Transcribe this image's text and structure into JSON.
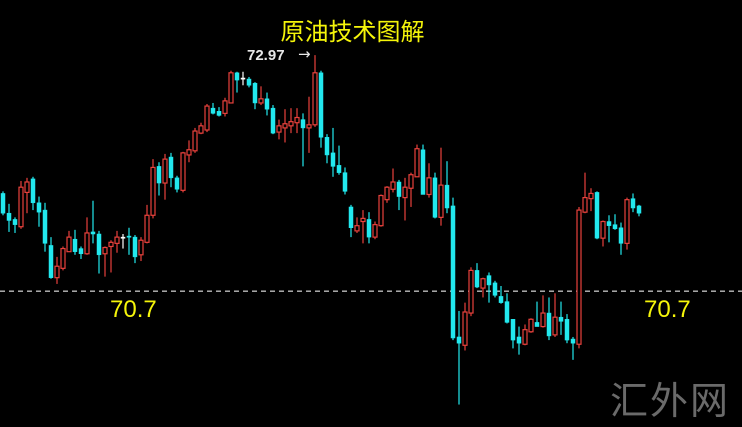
{
  "chart_data": {
    "type": "candlestick",
    "title": "原油技术图解",
    "colors": {
      "up": "#e8413c",
      "down": "#22e8ee",
      "doji": "#ffffff",
      "level_line": "#bdbdbd",
      "text": "#f5f50a",
      "background": "#000000"
    },
    "reference_level": {
      "value": 70.7,
      "label": "70.7",
      "style": "dashed"
    },
    "high_annotation": {
      "value": 72.97,
      "label": "72.97",
      "arrow": "→"
    },
    "ylim": [
      69.4,
      73.5
    ],
    "grid": false,
    "candles_ohlc": [
      [
        71.64,
        71.66,
        71.43,
        71.45
      ],
      [
        71.45,
        71.54,
        71.27,
        71.38
      ],
      [
        71.39,
        71.41,
        71.26,
        71.34
      ],
      [
        71.32,
        71.76,
        71.3,
        71.7
      ],
      [
        71.65,
        71.79,
        71.45,
        71.75
      ],
      [
        71.78,
        71.8,
        71.48,
        71.55
      ],
      [
        71.55,
        71.61,
        71.32,
        71.46
      ],
      [
        71.48,
        71.55,
        71.08,
        71.16
      ],
      [
        71.14,
        71.22,
        70.82,
        70.83
      ],
      [
        70.83,
        71.03,
        70.77,
        70.94
      ],
      [
        70.92,
        71.13,
        70.9,
        71.11
      ],
      [
        71.08,
        71.28,
        71.08,
        71.22
      ],
      [
        71.2,
        71.29,
        71.05,
        71.08
      ],
      [
        71.11,
        71.13,
        71.01,
        71.06
      ],
      [
        71.06,
        71.41,
        71.05,
        71.26
      ],
      [
        71.27,
        71.57,
        71.16,
        71.25
      ],
      [
        71.25,
        71.28,
        70.87,
        71.05
      ],
      [
        71.06,
        71.13,
        70.84,
        71.12
      ],
      [
        71.13,
        71.19,
        70.88,
        71.17
      ],
      [
        71.16,
        71.28,
        71.07,
        71.22
      ],
      [
        71.22,
        71.25,
        71.11,
        71.22
      ],
      [
        71.23,
        71.31,
        71.05,
        71.22
      ],
      [
        71.22,
        71.24,
        70.97,
        71.03
      ],
      [
        71.05,
        71.22,
        70.99,
        71.19
      ],
      [
        71.17,
        71.53,
        71.16,
        71.43
      ],
      [
        71.43,
        71.97,
        71.4,
        71.89
      ],
      [
        71.9,
        71.94,
        71.62,
        71.74
      ],
      [
        71.74,
        72.02,
        71.58,
        71.97
      ],
      [
        71.99,
        72.03,
        71.7,
        71.79
      ],
      [
        71.79,
        71.81,
        71.65,
        71.68
      ],
      [
        71.67,
        72.04,
        71.65,
        72.03
      ],
      [
        72.01,
        72.15,
        71.94,
        72.06
      ],
      [
        72.05,
        72.27,
        72.03,
        72.24
      ],
      [
        72.22,
        72.32,
        72.21,
        72.29
      ],
      [
        72.25,
        72.5,
        72.23,
        72.48
      ],
      [
        72.46,
        72.51,
        72.4,
        72.41
      ],
      [
        72.43,
        72.47,
        72.38,
        72.39
      ],
      [
        72.41,
        72.56,
        72.38,
        72.53
      ],
      [
        72.51,
        72.82,
        72.51,
        72.8
      ],
      [
        72.8,
        72.81,
        72.61,
        72.73
      ],
      [
        72.75,
        72.81,
        72.68,
        72.75
      ],
      [
        72.74,
        72.76,
        72.66,
        72.68
      ],
      [
        72.7,
        72.71,
        72.45,
        72.51
      ],
      [
        72.51,
        72.67,
        72.49,
        72.55
      ],
      [
        72.55,
        72.61,
        72.39,
        72.45
      ],
      [
        72.46,
        72.49,
        72.21,
        72.22
      ],
      [
        72.23,
        72.35,
        72.16,
        72.29
      ],
      [
        72.27,
        72.45,
        72.13,
        72.31
      ],
      [
        72.29,
        72.46,
        72.22,
        72.33
      ],
      [
        72.32,
        72.46,
        72.22,
        72.37
      ],
      [
        72.35,
        72.41,
        71.9,
        72.27
      ],
      [
        72.27,
        72.57,
        72.03,
        72.3
      ],
      [
        72.3,
        72.97,
        72.28,
        72.8
      ],
      [
        72.8,
        72.82,
        72.08,
        72.18
      ],
      [
        72.18,
        72.21,
        71.93,
        72.01
      ],
      [
        72.03,
        72.27,
        71.8,
        71.9
      ],
      [
        71.91,
        72.1,
        71.82,
        71.84
      ],
      [
        71.84,
        71.89,
        71.63,
        71.66
      ],
      [
        71.51,
        71.53,
        71.22,
        71.31
      ],
      [
        71.28,
        71.41,
        71.26,
        71.33
      ],
      [
        71.37,
        71.48,
        71.16,
        71.4
      ],
      [
        71.39,
        71.46,
        71.16,
        71.22
      ],
      [
        71.22,
        71.37,
        71.2,
        71.34
      ],
      [
        71.33,
        71.63,
        71.32,
        71.62
      ],
      [
        71.58,
        71.71,
        71.55,
        71.7
      ],
      [
        71.68,
        71.88,
        71.65,
        71.75
      ],
      [
        71.75,
        71.77,
        71.48,
        71.61
      ],
      [
        71.6,
        71.79,
        71.38,
        71.7
      ],
      [
        71.69,
        71.84,
        71.51,
        71.82
      ],
      [
        71.8,
        72.11,
        71.8,
        72.07
      ],
      [
        72.06,
        72.11,
        71.63,
        71.63
      ],
      [
        71.63,
        71.93,
        71.6,
        71.79
      ],
      [
        71.79,
        71.84,
        71.4,
        71.41
      ],
      [
        71.41,
        72.08,
        71.33,
        71.72
      ],
      [
        71.72,
        71.95,
        71.45,
        71.5
      ],
      [
        71.52,
        71.6,
        70.23,
        70.25
      ],
      [
        70.26,
        70.51,
        69.61,
        70.2
      ],
      [
        70.18,
        70.59,
        70.13,
        70.5
      ],
      [
        70.49,
        70.93,
        70.46,
        70.9
      ],
      [
        70.9,
        70.97,
        70.73,
        70.74
      ],
      [
        70.73,
        70.83,
        70.64,
        70.82
      ],
      [
        70.85,
        70.88,
        70.59,
        70.76
      ],
      [
        70.78,
        70.8,
        70.64,
        70.66
      ],
      [
        70.65,
        70.75,
        70.58,
        70.59
      ],
      [
        70.6,
        70.68,
        70.39,
        70.4
      ],
      [
        70.43,
        70.43,
        70.15,
        70.23
      ],
      [
        70.26,
        70.36,
        70.09,
        70.2
      ],
      [
        70.19,
        70.38,
        70.18,
        70.33
      ],
      [
        70.31,
        70.44,
        70.3,
        70.43
      ],
      [
        70.4,
        70.6,
        70.36,
        70.36
      ],
      [
        70.36,
        70.66,
        70.35,
        70.49
      ],
      [
        70.49,
        70.64,
        70.23,
        70.27
      ],
      [
        70.28,
        70.68,
        70.26,
        70.45
      ],
      [
        70.45,
        70.6,
        70.28,
        70.41
      ],
      [
        70.43,
        70.48,
        70.2,
        70.23
      ],
      [
        70.24,
        70.26,
        70.04,
        70.2
      ],
      [
        70.19,
        71.51,
        70.15,
        71.48
      ],
      [
        71.46,
        71.84,
        71.45,
        71.6
      ],
      [
        71.59,
        71.69,
        71.47,
        71.64
      ],
      [
        71.65,
        71.66,
        71.2,
        71.21
      ],
      [
        71.21,
        71.38,
        71.13,
        71.37
      ],
      [
        71.37,
        71.43,
        71.17,
        71.33
      ],
      [
        71.34,
        71.44,
        71.29,
        71.3
      ],
      [
        71.31,
        71.36,
        71.05,
        71.16
      ],
      [
        71.16,
        71.6,
        71.1,
        71.58
      ],
      [
        71.59,
        71.64,
        71.46,
        71.5
      ],
      [
        71.52,
        71.53,
        71.42,
        71.45
      ]
    ]
  },
  "watermark": "汇外网"
}
